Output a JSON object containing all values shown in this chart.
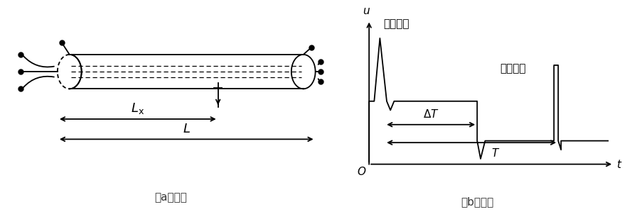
{
  "fig_width": 8.89,
  "fig_height": 3.16,
  "bg_color": "#ffffff",
  "line_color": "#000000",
  "label_a": "（a）接线",
  "label_b": "（b）波形",
  "label_color": "#333333",
  "label_fontsize": 11,
  "Lx_label": "$L_{\\rm x}$",
  "L_label": "$L$",
  "u_label": "$u$",
  "t_label": "$t$",
  "O_label": "$O$",
  "deltaT_label": "$\\Delta T$",
  "T_label": "$T$",
  "fashe_label": "发射脉冲",
  "fanshe_label": "反射脉冲",
  "font_family": "SimHei"
}
